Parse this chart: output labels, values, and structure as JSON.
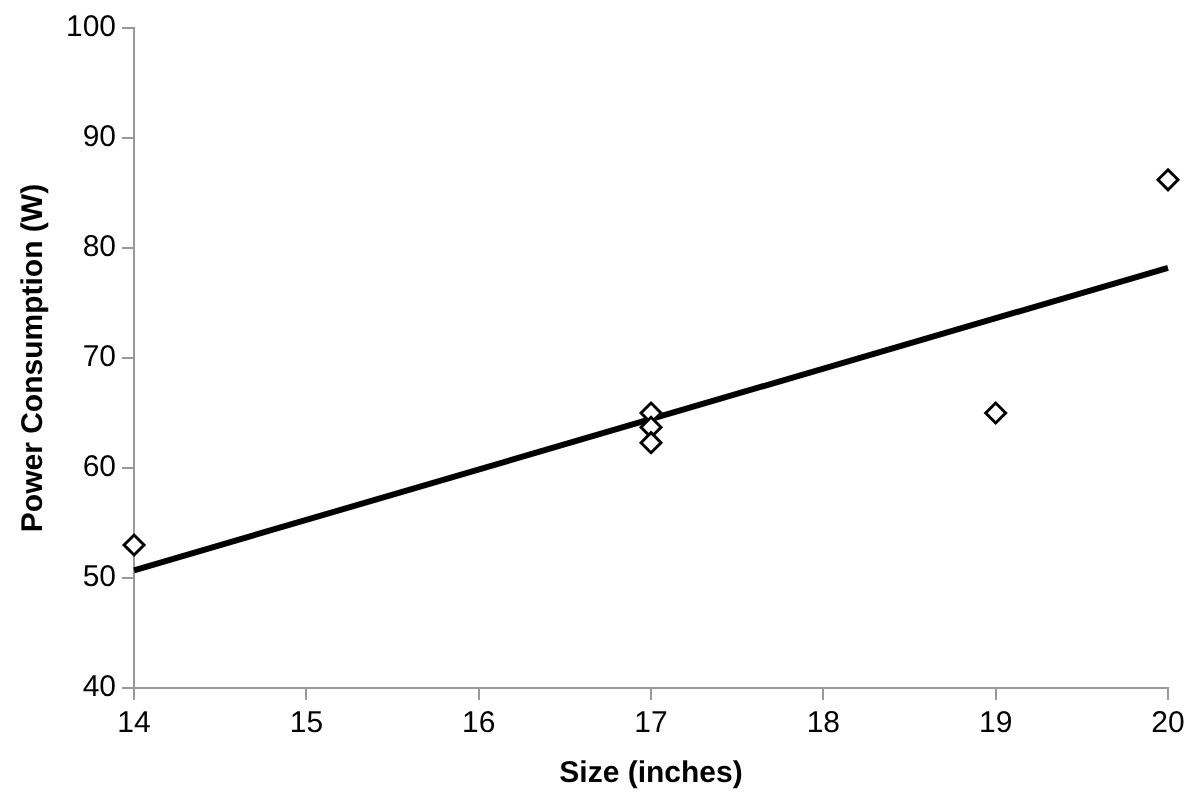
{
  "chart_data": {
    "type": "scatter",
    "xlabel": "Size (inches)",
    "ylabel": "Power Consumption (W)",
    "series": [
      {
        "color": "#000000",
        "marker": "diamond",
        "x": [
          14,
          17,
          17,
          17,
          19,
          20
        ],
        "values": [
          53,
          65,
          63.7,
          62.3,
          65,
          86.2
        ]
      },
      {
        "type": "line",
        "color": "#000000",
        "marker": "none",
        "line_style": "solid",
        "x": [
          14,
          20
        ],
        "values": [
          50.7,
          78.2
        ]
      }
    ],
    "xlim": [
      14,
      20
    ],
    "xticks": [
      14,
      15,
      16,
      17,
      18,
      19,
      20
    ],
    "ylim": [
      40,
      100
    ],
    "yticks": [
      40,
      50,
      60,
      70,
      80,
      90,
      100
    ],
    "grid": false,
    "legend": false
  }
}
